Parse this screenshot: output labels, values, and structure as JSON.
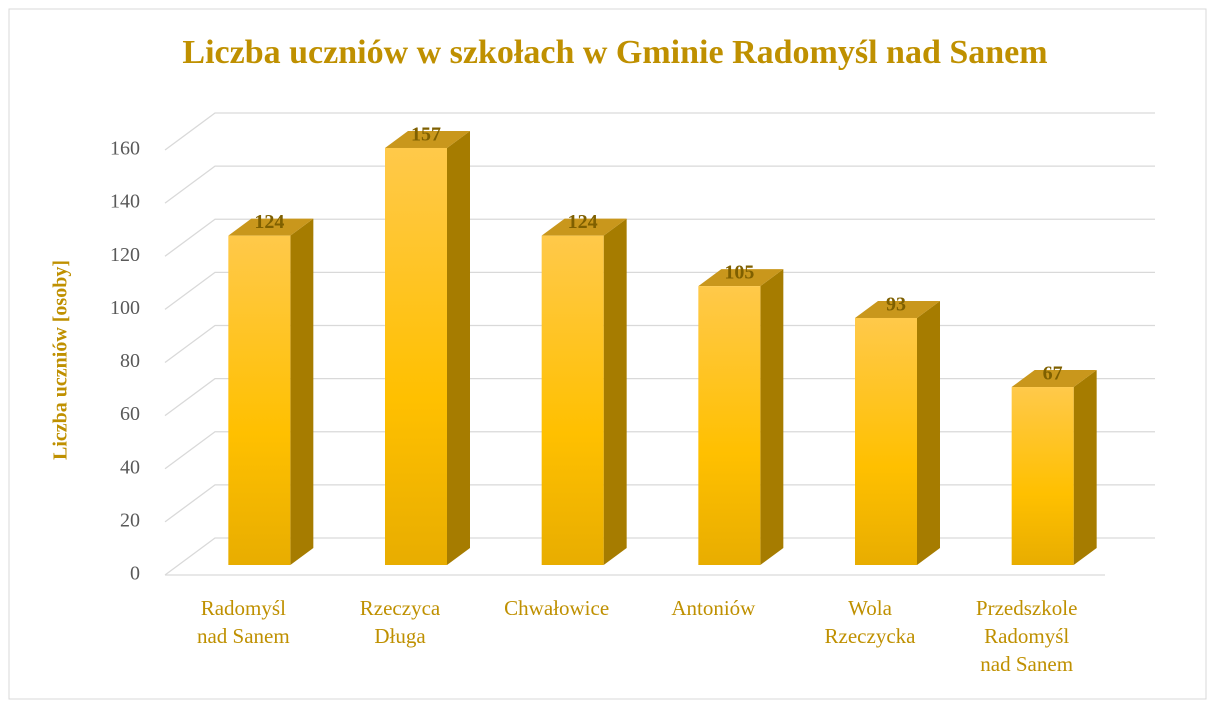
{
  "chart_data": {
    "type": "bar3d",
    "title": "Liczba uczniów w szkołach w Gminie Radomyśl nad Sanem",
    "y_label": "Liczba uczniów [osoby]",
    "categories": [
      "Radomyśl\nnad Sanem",
      "Rzeczyca\nDługa",
      "Chwałowice",
      "Antoniów",
      "Wola\nRzeczycka",
      "Przedszkole\nRadomyśl\nnad Sanem"
    ],
    "values": [
      124,
      157,
      124,
      105,
      93,
      67
    ],
    "color": "#ffc000",
    "ylim": [
      0,
      160
    ],
    "yticks": [
      0,
      20,
      40,
      60,
      80,
      100,
      120,
      140,
      160
    ],
    "grid": true
  }
}
